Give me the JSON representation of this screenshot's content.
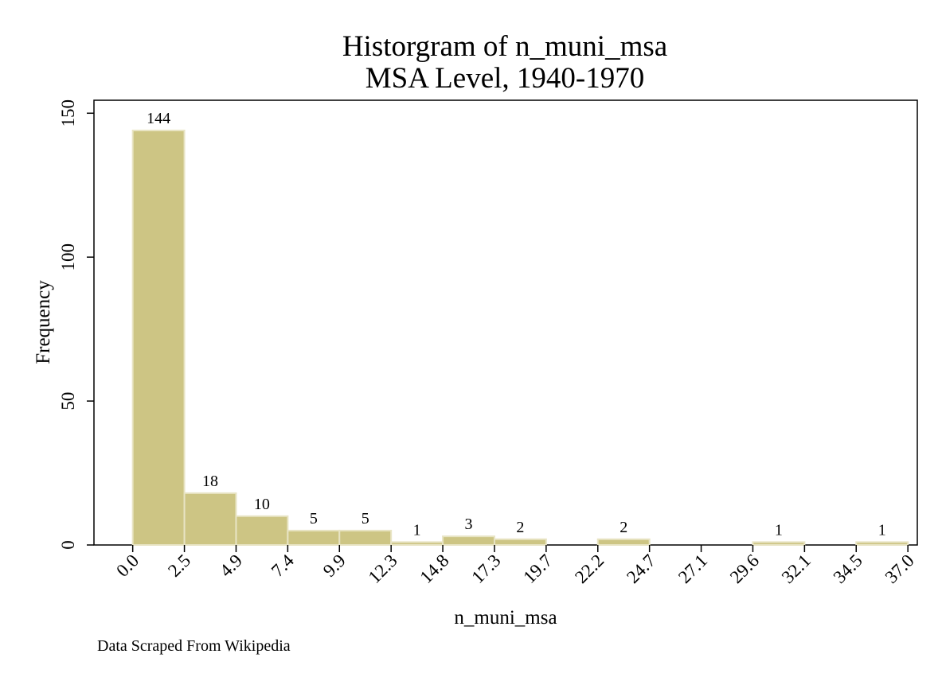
{
  "chart_data": {
    "type": "bar",
    "title": "Historgram of n_muni_msa",
    "subtitle": "MSA Level, 1940-1970",
    "xlabel": "n_muni_msa",
    "ylabel": "Frequency",
    "bin_edges": [
      0.0,
      2.466667,
      4.933333,
      7.4,
      9.866667,
      12.333333,
      14.8,
      17.266667,
      19.733333,
      22.2,
      24.666667,
      27.133333,
      29.6,
      32.066667,
      34.533333,
      37.0
    ],
    "x_tick_labels": [
      "0.0",
      "2.5",
      "4.9",
      "7.4",
      "9.9",
      "12.3",
      "14.8",
      "17.3",
      "19.7",
      "22.2",
      "24.7",
      "27.1",
      "29.6",
      "32.1",
      "34.5",
      "37.0"
    ],
    "values": [
      144,
      18,
      10,
      5,
      5,
      1,
      3,
      2,
      0,
      2,
      0,
      0,
      1,
      0,
      1
    ],
    "bar_labels": [
      "144",
      "18",
      "10",
      "5",
      "5",
      "1",
      "3",
      "2",
      "",
      "2",
      "",
      "",
      "1",
      "",
      "1"
    ],
    "y_ticks": [
      0,
      50,
      100,
      150
    ],
    "y_tick_labels": [
      "0",
      "50",
      "100",
      "150"
    ],
    "ylim": [
      0,
      154.5
    ],
    "xlim": [
      -1.85,
      37.45
    ],
    "grid": false,
    "legend": "none",
    "bar_color": "#cdc584",
    "bar_edge_color": "#e8e4c4",
    "note": "Data Scraped From Wikipedia"
  }
}
